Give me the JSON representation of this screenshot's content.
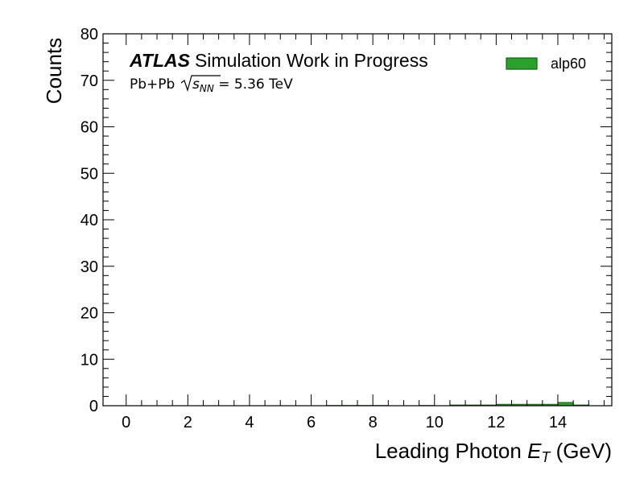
{
  "chart_data": {
    "type": "bar",
    "ylabel": "Counts",
    "xlabel_main": "Leading Photon ",
    "xlabel_var": "E",
    "xlabel_sub": "T",
    "xlabel_unit": " (GeV)",
    "xlim": [
      -0.75,
      15.75
    ],
    "ylim": [
      0,
      80
    ],
    "x_ticks": [
      0,
      2,
      4,
      6,
      8,
      10,
      12,
      14
    ],
    "y_ticks": [
      0,
      10,
      20,
      30,
      40,
      50,
      60,
      70,
      80
    ],
    "bin_width": 0.5,
    "series": [
      {
        "name": "alp60",
        "color": "#2ca02c",
        "edge_color": "#1a5e1a",
        "bins": [
          {
            "x": 6.5,
            "value": 0.05
          },
          {
            "x": 7.0,
            "value": 0.05
          },
          {
            "x": 7.5,
            "value": 0.05
          },
          {
            "x": 8.0,
            "value": 0.05
          },
          {
            "x": 9.5,
            "value": 0.05
          },
          {
            "x": 10.5,
            "value": 0.15
          },
          {
            "x": 11.0,
            "value": 0.15
          },
          {
            "x": 11.5,
            "value": 0.15
          },
          {
            "x": 12.0,
            "value": 0.3
          },
          {
            "x": 12.5,
            "value": 0.3
          },
          {
            "x": 13.0,
            "value": 0.3
          },
          {
            "x": 13.5,
            "value": 0.3
          },
          {
            "x": 14.0,
            "value": 0.7
          },
          {
            "x": 14.5,
            "value": 0.15
          }
        ]
      }
    ],
    "annotation": {
      "atlas": "ATLAS",
      "status": "Simulation Work in Progress",
      "system": "Pb+Pb ",
      "energy_var": "s",
      "energy_sub": "NN",
      "energy_value": " = 5.36 TeV"
    },
    "legend": "top-right",
    "grid": false
  }
}
